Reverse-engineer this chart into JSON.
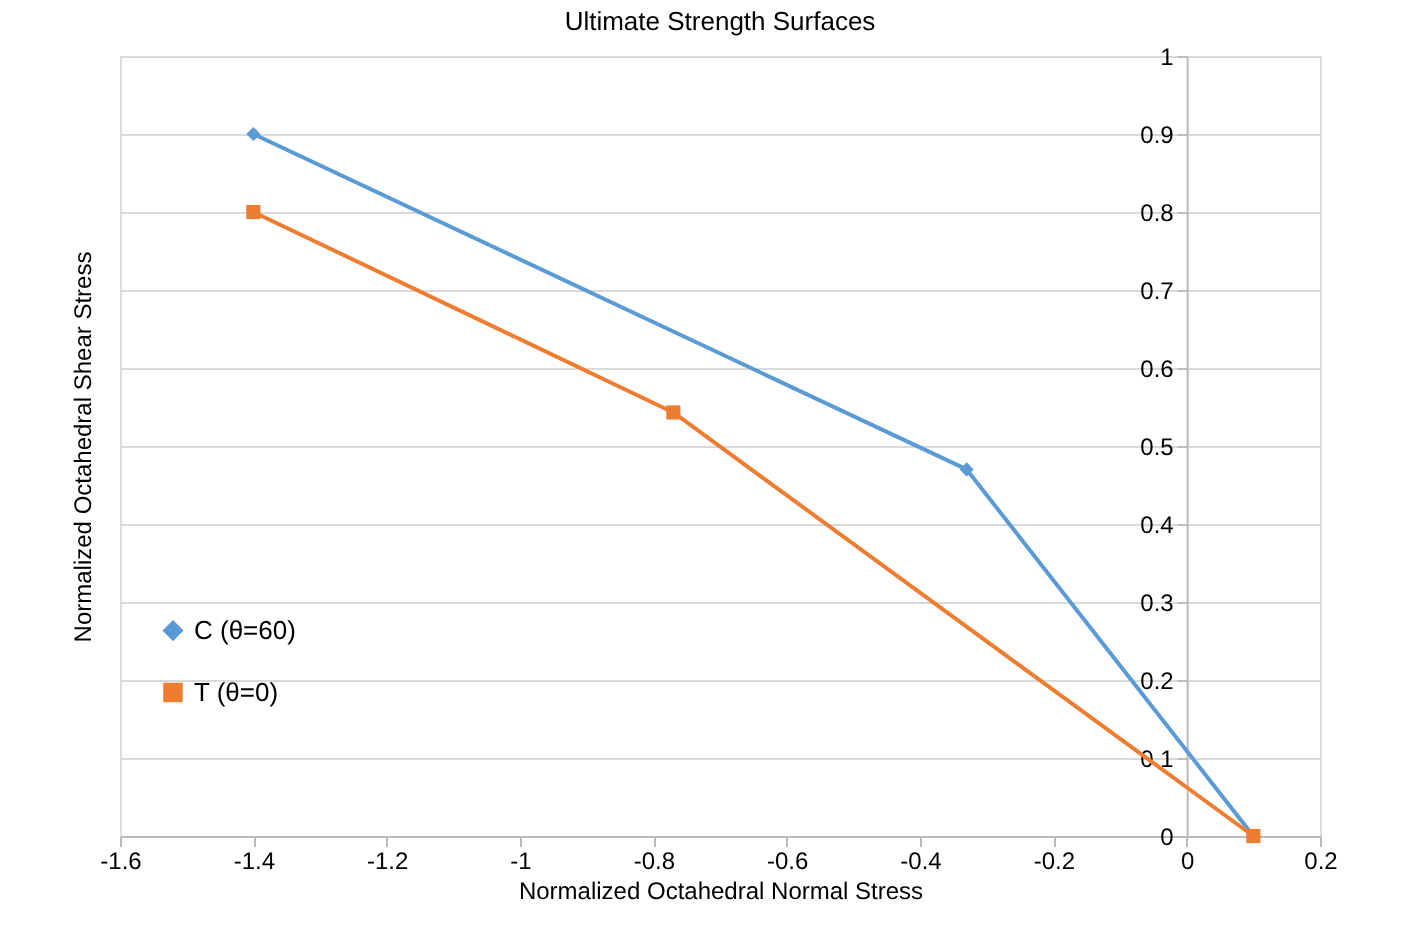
{
  "chart_data": {
    "type": "line",
    "title": "Ultimate Strength Surfaces",
    "xlabel": "Normalized Octahedral Normal Stress",
    "ylabel": "Normalized Octahedral Shear Stress",
    "series": [
      {
        "name": "C (θ=60)",
        "color": "#5b9bd5",
        "marker": "diamond",
        "x": [
          -1.4,
          -0.33,
          0.1
        ],
        "values": [
          0.9,
          0.47,
          0
        ]
      },
      {
        "name": "T (θ=0)",
        "color": "#ed7d31",
        "marker": "square",
        "x": [
          -1.4,
          -0.77,
          0.1
        ],
        "values": [
          0.8,
          0.543,
          0
        ]
      }
    ],
    "xlim": [
      -1.6,
      0.2
    ],
    "xticks": [
      -1.6,
      -1.4,
      -1.2,
      -1,
      -0.8,
      -0.6,
      -0.4,
      -0.2,
      0,
      0.2
    ],
    "ylim": [
      0,
      1
    ],
    "yticks": [
      0,
      0.1,
      0.2,
      0.3,
      0.4,
      0.5,
      0.6,
      0.7,
      0.8,
      0.9,
      1
    ],
    "grid": "y",
    "legend": "left",
    "line_style": "solid"
  }
}
